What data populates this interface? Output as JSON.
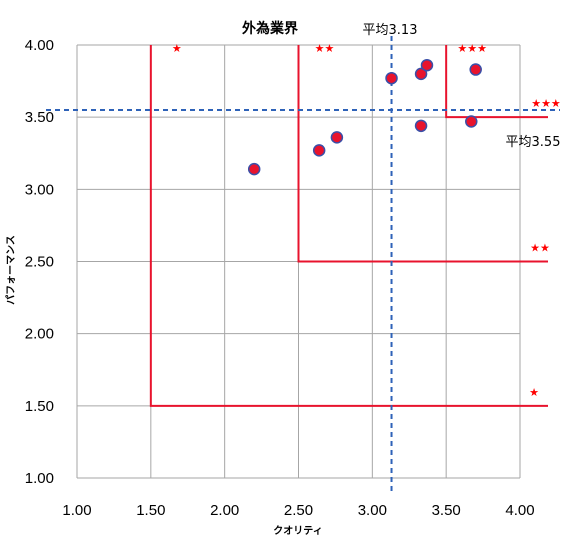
{
  "chart_data": {
    "type": "scatter",
    "title": "外為業界",
    "xlabel": "クオリティ",
    "ylabel": "パフォーマンス",
    "xlim": [
      1.0,
      4.0
    ],
    "ylim": [
      1.0,
      4.0
    ],
    "xticks": [
      "1.00",
      "1.50",
      "2.00",
      "2.50",
      "3.00",
      "3.50",
      "4.00"
    ],
    "yticks": [
      "1.00",
      "1.50",
      "2.00",
      "2.50",
      "3.00",
      "3.50",
      "4.00"
    ],
    "grid": true,
    "points": [
      {
        "x": 2.2,
        "y": 3.14
      },
      {
        "x": 2.64,
        "y": 3.27
      },
      {
        "x": 2.76,
        "y": 3.36
      },
      {
        "x": 3.13,
        "y": 3.77
      },
      {
        "x": 3.33,
        "y": 3.8
      },
      {
        "x": 3.37,
        "y": 3.86
      },
      {
        "x": 3.7,
        "y": 3.83
      },
      {
        "x": 3.33,
        "y": 3.44
      },
      {
        "x": 3.67,
        "y": 3.47
      }
    ],
    "mean_lines": {
      "x": {
        "value": 3.13,
        "label": "平均3.13"
      },
      "y": {
        "value": 3.55,
        "label": "平均3.55"
      }
    },
    "zones": [
      {
        "x": 1.5,
        "y": 1.5,
        "top_label": "★",
        "right_label": "★"
      },
      {
        "x": 2.5,
        "y": 2.5,
        "top_label": "★★",
        "right_label": "★★"
      },
      {
        "x": 3.5,
        "y": 3.5,
        "top_label": "★★★",
        "right_label": "★★★"
      }
    ],
    "colors": {
      "point_fill": "#e8132d",
      "point_edge": "#3a4fa8",
      "mean_line": "#2e62b8",
      "zone_line": "#e8132d",
      "grid": "#a6a6a6",
      "star": "#ff0000"
    }
  }
}
